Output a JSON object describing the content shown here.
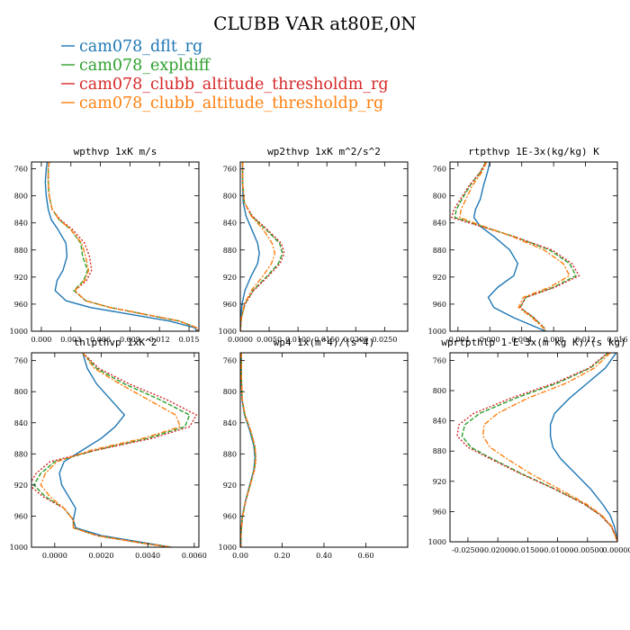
{
  "title": "CLUBB VAR at80E,0N",
  "legend": [
    {
      "label": "cam078_dflt_rg",
      "color": "#1f77b4"
    },
    {
      "label": "cam078_expldiff",
      "color": "#2ca02c"
    },
    {
      "label": "cam078_clubb_altitude_thresholdm_rg",
      "color": "#d62728"
    },
    {
      "label": "cam078_clubb_altitude_thresholdp_rg",
      "color": "#ff7f0e"
    }
  ],
  "chart_data": [
    {
      "type": "line",
      "title": "wpthvp   1xK m/s",
      "xlim": [
        -0.001,
        0.016
      ],
      "ylim": [
        1000,
        750
      ],
      "xticks": [
        "0.000",
        "0.003",
        "0.006",
        "0.009",
        "0.012",
        "0.015"
      ],
      "yticks": [
        "760",
        "800",
        "840",
        "880",
        "920",
        "960",
        "1000"
      ],
      "y": [
        750,
        760,
        780,
        800,
        820,
        835,
        850,
        870,
        890,
        910,
        925,
        940,
        955,
        965,
        975,
        985,
        995,
        1000
      ],
      "series": [
        {
          "name": "cam078_dflt_rg",
          "values": [
            0.0006,
            0.0005,
            0.0004,
            0.0005,
            0.0007,
            0.001,
            0.0017,
            0.0025,
            0.0026,
            0.0022,
            0.0016,
            0.0014,
            0.0025,
            0.005,
            0.009,
            0.013,
            0.0156,
            0.0158
          ]
        },
        {
          "name": "cam078_expldiff",
          "values": [
            0.0008,
            0.0007,
            0.0007,
            0.0008,
            0.0011,
            0.0018,
            0.003,
            0.004,
            0.0042,
            0.0047,
            0.0043,
            0.0033,
            0.0045,
            0.007,
            0.0105,
            0.014,
            0.0158,
            0.0159
          ]
        },
        {
          "name": "cam078_clubb_altitude_thresholdm_rg",
          "values": [
            0.0008,
            0.0007,
            0.0007,
            0.0008,
            0.0011,
            0.0019,
            0.0032,
            0.0044,
            0.0049,
            0.0051,
            0.0046,
            0.0034,
            0.0045,
            0.007,
            0.0105,
            0.014,
            0.0158,
            0.0159
          ]
        },
        {
          "name": "cam078_clubb_altitude_thresholdp_rg",
          "values": [
            0.0008,
            0.0007,
            0.0007,
            0.0008,
            0.0011,
            0.0018,
            0.003,
            0.0041,
            0.0045,
            0.0048,
            0.0044,
            0.0034,
            0.0045,
            0.007,
            0.0105,
            0.014,
            0.0158,
            0.0159
          ]
        }
      ]
    },
    {
      "type": "line",
      "title": "wp2thvp   1xK m^2/s^2",
      "xlim": [
        0,
        0.029
      ],
      "ylim": [
        1000,
        750
      ],
      "xticks": [
        "0.0000",
        "0.0050",
        "0.0100",
        "0.0150",
        "0.0200",
        "0.0250"
      ],
      "yticks": [
        "760",
        "800",
        "840",
        "880",
        "920",
        "960",
        "1000"
      ],
      "y": [
        750,
        780,
        810,
        830,
        850,
        870,
        885,
        900,
        920,
        940,
        960,
        980,
        1000
      ],
      "series": [
        {
          "name": "cam078_dflt_rg",
          "values": [
            0.0004,
            0.0004,
            0.0005,
            0.001,
            0.002,
            0.003,
            0.0033,
            0.003,
            0.0018,
            0.0008,
            0.0003,
            0.0001,
            0.0
          ]
        },
        {
          "name": "cam078_expldiff",
          "values": [
            0.0004,
            0.0004,
            0.0007,
            0.002,
            0.0045,
            0.0068,
            0.0073,
            0.0066,
            0.0045,
            0.0022,
            0.0008,
            0.0002,
            0.0
          ]
        },
        {
          "name": "cam078_clubb_altitude_thresholdm_rg",
          "values": [
            0.0004,
            0.0004,
            0.0007,
            0.0021,
            0.0047,
            0.0071,
            0.0076,
            0.0069,
            0.0047,
            0.0023,
            0.0008,
            0.0002,
            0.0
          ]
        },
        {
          "name": "cam078_clubb_altitude_thresholdp_rg",
          "values": [
            0.0004,
            0.0004,
            0.0007,
            0.0019,
            0.004,
            0.0055,
            0.006,
            0.0054,
            0.0038,
            0.0019,
            0.0007,
            0.0002,
            0.0
          ]
        }
      ]
    },
    {
      "type": "line",
      "title": "rtpthvp   1E-3x(kg/kg) K",
      "xlim": [
        -0.005,
        0.016
      ],
      "ylim": [
        1000,
        750
      ],
      "xticks": [
        "-0.004",
        "0.000",
        "0.004",
        "0.008",
        "0.012",
        "0.016"
      ],
      "yticks": [
        "760",
        "800",
        "840",
        "880",
        "920",
        "960",
        "1000"
      ],
      "y": [
        750,
        765,
        785,
        805,
        820,
        832,
        845,
        860,
        880,
        900,
        918,
        935,
        950,
        965,
        980,
        995,
        1000
      ],
      "series": [
        {
          "name": "cam078_dflt_rg",
          "values": [
            0.0,
            -0.0003,
            -0.0008,
            -0.0012,
            -0.0018,
            -0.002,
            -0.0012,
            0.0005,
            0.0025,
            0.0035,
            0.003,
            0.001,
            -0.0002,
            0.0005,
            0.003,
            0.006,
            0.007
          ]
        },
        {
          "name": "cam078_expldiff",
          "values": [
            -0.0005,
            -0.0012,
            -0.0025,
            -0.0035,
            -0.0042,
            -0.0044,
            -0.001,
            0.003,
            0.0075,
            0.01,
            0.0108,
            0.008,
            0.0045,
            0.0038,
            0.0055,
            0.0068,
            0.007
          ]
        },
        {
          "name": "cam078_clubb_altitude_thresholdm_rg",
          "values": [
            -0.0005,
            -0.0012,
            -0.0026,
            -0.0037,
            -0.0045,
            -0.0048,
            -0.0012,
            0.003,
            0.0078,
            0.0103,
            0.0112,
            0.0082,
            0.0045,
            0.0038,
            0.0055,
            0.0068,
            0.007
          ]
        },
        {
          "name": "cam078_clubb_altitude_thresholdp_rg",
          "values": [
            -0.0004,
            -0.001,
            -0.0022,
            -0.003,
            -0.0036,
            -0.0038,
            -0.0008,
            0.0028,
            0.0068,
            0.0092,
            0.01,
            0.0075,
            0.0042,
            0.0036,
            0.0053,
            0.0067,
            0.007
          ]
        }
      ]
    },
    {
      "type": "line",
      "title": "thlpthvp   1xK^2",
      "xlim": [
        -0.001,
        0.0062
      ],
      "ylim": [
        1000,
        750
      ],
      "xticks": [
        "0.0000",
        "0.0020",
        "0.0040",
        "0.0060"
      ],
      "yticks": [
        "760",
        "800",
        "840",
        "880",
        "920",
        "960",
        "1000"
      ],
      "y": [
        750,
        770,
        790,
        810,
        830,
        845,
        860,
        875,
        890,
        905,
        920,
        935,
        950,
        965,
        975,
        985,
        995,
        1000
      ],
      "series": [
        {
          "name": "cam078_dflt_rg",
          "values": [
            0.0012,
            0.0014,
            0.0018,
            0.0024,
            0.003,
            0.0026,
            0.002,
            0.0012,
            0.0004,
            0.0002,
            0.0003,
            0.0006,
            0.0009,
            0.0008,
            0.0009,
            0.002,
            0.004,
            0.005
          ]
        },
        {
          "name": "cam078_expldiff",
          "values": [
            0.0012,
            0.0018,
            0.003,
            0.0045,
            0.0058,
            0.0056,
            0.004,
            0.0018,
            0.0,
            -0.0006,
            -0.0009,
            -0.0004,
            0.0004,
            0.0008,
            0.0008,
            0.0018,
            0.0038,
            0.005
          ]
        },
        {
          "name": "cam078_clubb_altitude_thresholdm_rg",
          "values": [
            0.0012,
            0.0019,
            0.0032,
            0.0048,
            0.0061,
            0.0058,
            0.0042,
            0.0018,
            -0.0002,
            -0.0008,
            -0.0011,
            -0.0005,
            0.0004,
            0.0008,
            0.0008,
            0.0018,
            0.0038,
            0.005
          ]
        },
        {
          "name": "cam078_clubb_altitude_thresholdp_rg",
          "values": [
            0.0012,
            0.0017,
            0.0028,
            0.004,
            0.0052,
            0.0054,
            0.0038,
            0.0016,
            0.0001,
            -0.0004,
            -0.0006,
            -0.0002,
            0.0004,
            0.0008,
            0.0008,
            0.0018,
            0.0038,
            0.005
          ]
        }
      ]
    },
    {
      "type": "line",
      "title": "wp4   1x(m^4)/(s^4)",
      "xlim": [
        0,
        0.8
      ],
      "ylim": [
        1000,
        750
      ],
      "xticks": [
        "0.00",
        "0.20",
        "0.40",
        "0.60"
      ],
      "yticks": [
        "760",
        "800",
        "840",
        "880",
        "920",
        "960",
        "1000"
      ],
      "y": [
        750,
        780,
        810,
        830,
        850,
        870,
        885,
        900,
        920,
        940,
        960,
        980,
        1000
      ],
      "series": [
        {
          "name": "cam078_dflt_rg",
          "values": [
            0.005,
            0.005,
            0.008,
            0.02,
            0.045,
            0.065,
            0.07,
            0.065,
            0.045,
            0.025,
            0.01,
            0.004,
            0.002
          ]
        },
        {
          "name": "cam078_expldiff",
          "values": [
            0.005,
            0.005,
            0.009,
            0.022,
            0.048,
            0.068,
            0.073,
            0.067,
            0.047,
            0.026,
            0.011,
            0.004,
            0.002
          ]
        },
        {
          "name": "cam078_clubb_altitude_thresholdm_rg",
          "values": [
            0.005,
            0.005,
            0.009,
            0.023,
            0.05,
            0.07,
            0.075,
            0.069,
            0.048,
            0.027,
            0.011,
            0.004,
            0.002
          ]
        },
        {
          "name": "cam078_clubb_altitude_thresholdp_rg",
          "values": [
            0.005,
            0.005,
            0.009,
            0.022,
            0.049,
            0.069,
            0.074,
            0.068,
            0.047,
            0.026,
            0.011,
            0.004,
            0.002
          ]
        }
      ]
    },
    {
      "type": "line",
      "title": "wprtpthlp   1-E-3x(m kg K)/(s kg)",
      "xlim": [
        -0.028,
        0.0
      ],
      "ylim": [
        1000,
        750
      ],
      "xticks": [
        "-0.02500",
        "-0.02000",
        "-0.01500",
        "-0.01000",
        "-0.00500",
        "0.00000"
      ],
      "yticks": [
        "760",
        "800",
        "840",
        "880",
        "920",
        "960",
        "1000"
      ],
      "y": [
        750,
        770,
        790,
        810,
        830,
        845,
        860,
        875,
        890,
        910,
        930,
        950,
        965,
        980,
        995,
        1000
      ],
      "series": [
        {
          "name": "cam078_dflt_rg",
          "values": [
            -0.0002,
            -0.002,
            -0.005,
            -0.008,
            -0.0105,
            -0.0112,
            -0.0112,
            -0.0108,
            -0.0095,
            -0.007,
            -0.0045,
            -0.0025,
            -0.0012,
            -0.0005,
            -0.0001,
            0.0
          ]
        },
        {
          "name": "cam078_expldiff",
          "values": [
            -0.0015,
            -0.0045,
            -0.01,
            -0.017,
            -0.023,
            -0.0255,
            -0.026,
            -0.0245,
            -0.021,
            -0.016,
            -0.0105,
            -0.0055,
            -0.0028,
            -0.001,
            -0.0002,
            0.0
          ]
        },
        {
          "name": "cam078_clubb_altitude_thresholdm_rg",
          "values": [
            -0.0016,
            -0.0047,
            -0.0105,
            -0.0178,
            -0.024,
            -0.0265,
            -0.0268,
            -0.025,
            -0.0213,
            -0.0162,
            -0.0106,
            -0.0056,
            -0.0028,
            -0.001,
            -0.0002,
            0.0
          ]
        },
        {
          "name": "cam078_clubb_altitude_thresholdp_rg",
          "values": [
            -0.0012,
            -0.0038,
            -0.0085,
            -0.015,
            -0.02,
            -0.0223,
            -0.0225,
            -0.0213,
            -0.0185,
            -0.0145,
            -0.0098,
            -0.0052,
            -0.0026,
            -0.0009,
            -0.0002,
            0.0
          ]
        }
      ]
    }
  ]
}
